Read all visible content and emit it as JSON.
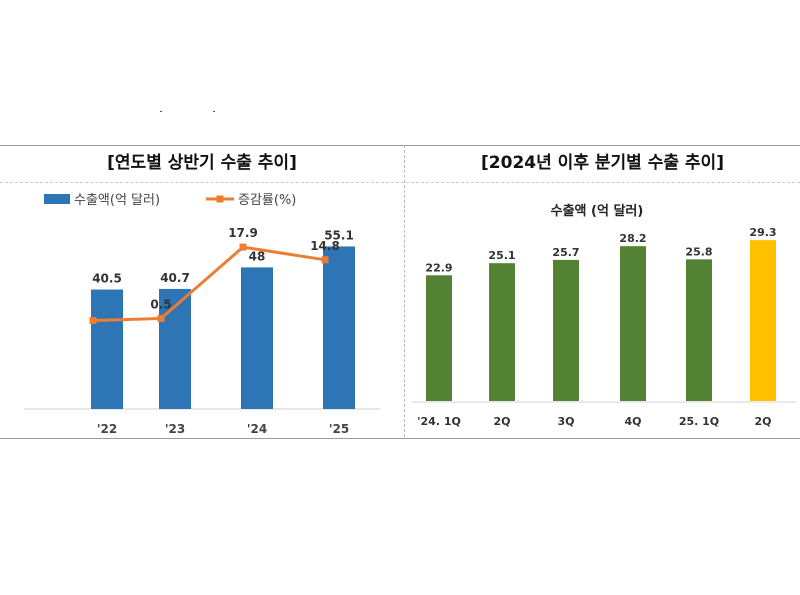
{
  "left_title": "[연도별 상반기 수출 추이]",
  "right_title": "[2024년 이후 분기별 수출 추이]",
  "chart_data": [
    {
      "type": "bar",
      "title": "[연도별 상반기 수출 추이]",
      "categories": [
        "'22",
        "'23",
        "'24",
        "'25"
      ],
      "series": [
        {
          "name": "수출액(억 달러)",
          "type": "bar",
          "values": [
            40.5,
            40.7,
            48,
            55.1
          ],
          "color": "#2e75b6"
        },
        {
          "name": "증감률(%)",
          "type": "line",
          "values": [
            null,
            0.5,
            17.9,
            14.8
          ],
          "color": "#ed7d31"
        }
      ],
      "legend_position": "top"
    },
    {
      "type": "bar",
      "title": "[2024년 이후 분기별 수출 추이]",
      "subtitle": "수출액 (억 달러)",
      "categories": [
        "'24. 1Q",
        "2Q",
        "3Q",
        "4Q",
        "25. 1Q",
        "2Q"
      ],
      "values": [
        22.9,
        25.1,
        25.7,
        28.2,
        25.8,
        29.3
      ],
      "colors": [
        "#548235",
        "#548235",
        "#548235",
        "#548235",
        "#548235",
        "#ffc000"
      ]
    }
  ]
}
